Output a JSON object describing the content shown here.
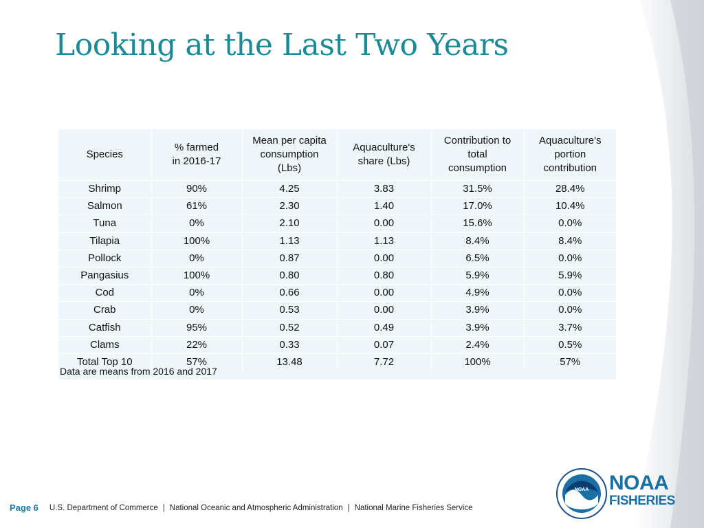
{
  "title": "Looking at the Last Two Years",
  "table": {
    "headers": [
      [
        "Species"
      ],
      [
        "% farmed",
        "in 2016-17"
      ],
      [
        "Mean per capita",
        "consumption",
        "(Lbs)"
      ],
      [
        "Aquaculture's",
        "share (Lbs)"
      ],
      [
        "Contribution to",
        "total",
        "consumption"
      ],
      [
        "Aquaculture's",
        "portion",
        "contribution"
      ]
    ],
    "rows": [
      [
        "Shrimp",
        "90%",
        "4.25",
        "3.83",
        "31.5%",
        "28.4%"
      ],
      [
        "Salmon",
        "61%",
        "2.30",
        "1.40",
        "17.0%",
        "10.4%"
      ],
      [
        "Tuna",
        "0%",
        "2.10",
        "0.00",
        "15.6%",
        "0.0%"
      ],
      [
        "Tilapia",
        "100%",
        "1.13",
        "1.13",
        "8.4%",
        "8.4%"
      ],
      [
        "Pollock",
        "0%",
        "0.87",
        "0.00",
        "6.5%",
        "0.0%"
      ],
      [
        "Pangasius",
        "100%",
        "0.80",
        "0.80",
        "5.9%",
        "5.9%"
      ],
      [
        "Cod",
        "0%",
        "0.66",
        "0.00",
        "4.9%",
        "0.0%"
      ],
      [
        "Crab",
        "0%",
        "0.53",
        "0.00",
        "3.9%",
        "0.0%"
      ],
      [
        "Catfish",
        "95%",
        "0.52",
        "0.49",
        "3.9%",
        "3.7%"
      ],
      [
        "Clams",
        "22%",
        "0.33",
        "0.07",
        "2.4%",
        "0.5%"
      ],
      [
        "Total Top 10",
        "57%",
        "13.48",
        "7.72",
        "100%",
        "57%"
      ]
    ],
    "note": "Data are means from 2016 and 2017"
  },
  "footer": {
    "page": "Page 6",
    "parts": [
      "U.S. Department of Commerce",
      "National Oceanic and Atmospheric Administration",
      "National Marine Fisheries Service"
    ],
    "separator": "|"
  },
  "logo": {
    "emblem_text": "NOAA",
    "brand_line1": "NOAA",
    "brand_line2": "FISHERIES",
    "colors": {
      "brand_blue": "#1a6fa3",
      "title_teal": "#1b8a94"
    }
  }
}
